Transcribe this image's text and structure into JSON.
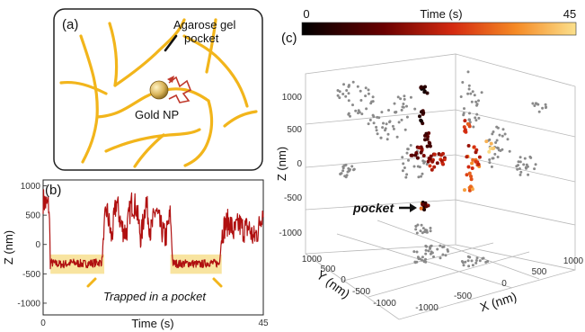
{
  "panel_a": {
    "label": "(a)",
    "pocket_label": [
      "Agarose gel",
      "pocket"
    ],
    "particle_label": "Gold NP",
    "colors": {
      "fiber": "#f2b51b",
      "arrow": "#c0392b",
      "particle": "#d9b45a"
    }
  },
  "panel_b": {
    "label": "(b)",
    "annotation": "Trapped in a pocket",
    "colors": {
      "trace": "#b01010",
      "band": "#f8e4a0",
      "annotation_marker": "#f2b51b"
    }
  },
  "panel_c": {
    "label": "(c)",
    "colorbar_title": "Time (s)",
    "colorbar_min": "0",
    "colorbar_max": "45",
    "annotation": "pocket",
    "colors": {
      "projection": "#8a8a8a"
    }
  },
  "chart_data": [
    {
      "type": "line",
      "panel": "b",
      "xlabel": "Time (s)",
      "ylabel": "Z (nm)",
      "xlim": [
        0,
        45
      ],
      "ylim": [
        -1200,
        1100
      ],
      "x_tick_labels": [
        "0",
        "45"
      ],
      "y_ticks": [
        1000,
        500,
        0,
        -500,
        -1000
      ],
      "y_tick_labels": [
        "1000",
        "500",
        "0",
        "-500",
        "-1000"
      ],
      "trapped_intervals": [
        [
          1.5,
          12.5
        ],
        [
          26,
          36.5
        ]
      ],
      "trapped_band": [
        -500,
        -170
      ],
      "x": [
        0,
        0.5,
        1.2,
        1.5,
        2,
        4,
        6,
        8,
        10,
        12,
        12.5,
        13,
        14,
        15,
        16,
        17,
        18,
        19,
        20,
        21,
        22,
        23,
        24,
        25,
        26,
        26.5,
        28,
        30,
        32,
        34,
        36,
        36.5,
        37,
        38,
        39,
        40,
        41,
        42,
        43,
        44,
        45
      ],
      "y": [
        750,
        700,
        650,
        -300,
        -320,
        -340,
        -310,
        -330,
        -320,
        -300,
        300,
        600,
        100,
        750,
        300,
        200,
        700,
        650,
        100,
        750,
        200,
        600,
        300,
        100,
        500,
        -320,
        -330,
        -320,
        -340,
        -310,
        -330,
        150,
        300,
        400,
        200,
        350,
        250,
        300,
        100,
        250,
        650
      ]
    },
    {
      "type": "scatter",
      "panel": "c",
      "xlabel": "X (nm)",
      "ylabel": "Y (nm)",
      "zlabel": "Z (nm)",
      "x_tick_labels": [
        "-1000",
        "-500",
        "0",
        "500",
        "1000"
      ],
      "y_tick_labels": [
        "1000",
        "500",
        "0",
        "-500",
        "-1000"
      ],
      "z_tick_labels": [
        "1000",
        "500",
        "0",
        "-500",
        "-1000"
      ],
      "color_by": "time",
      "color_range": [
        0,
        45
      ]
    }
  ]
}
